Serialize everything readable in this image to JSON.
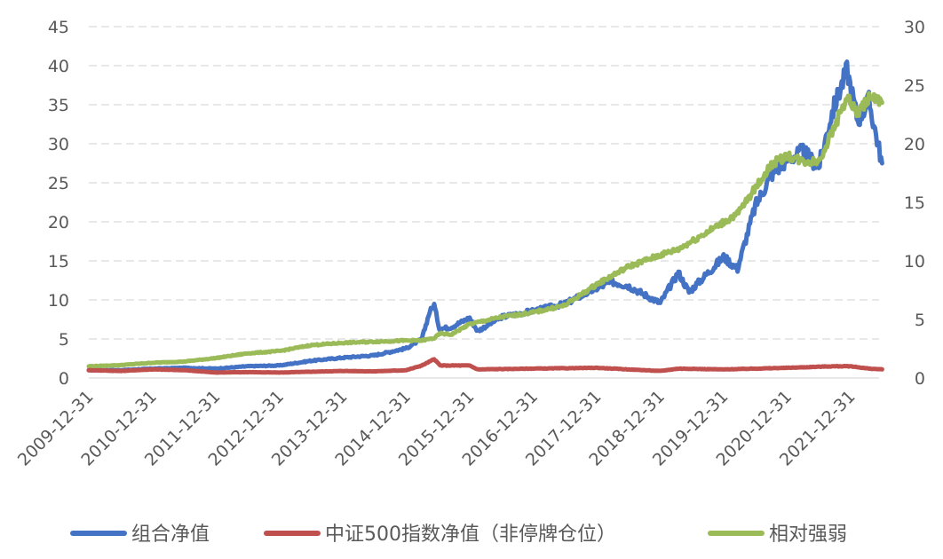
{
  "chart_data": {
    "type": "line",
    "title": "",
    "xlabel": "",
    "ylabel": "",
    "x_ticks": [
      "2009-12-31",
      "2010-12-31",
      "2011-12-31",
      "2012-12-31",
      "2013-12-31",
      "2014-12-31",
      "2015-12-31",
      "2016-12-31",
      "2017-12-31",
      "2018-12-31",
      "2019-12-31",
      "2020-12-31",
      "2021-12-31"
    ],
    "x_range": [
      "2009-12-31",
      "2022-06-30"
    ],
    "y_left": {
      "ticks": [
        0,
        5,
        10,
        15,
        20,
        25,
        30,
        35,
        40,
        45
      ],
      "ylim": [
        0,
        45
      ]
    },
    "y_right": {
      "ticks": [
        0,
        5,
        10,
        15,
        20,
        25,
        30
      ],
      "ylim": [
        0,
        30
      ]
    },
    "grid": "horizontal dashed",
    "legend_position": "bottom",
    "series": [
      {
        "name": "组合净值",
        "axis": "left",
        "color": "#4472C4",
        "points": [
          [
            "2009-12-31",
            1.0
          ],
          [
            "2010-06-30",
            1.0
          ],
          [
            "2010-12-31",
            1.2
          ],
          [
            "2011-06-30",
            1.3
          ],
          [
            "2011-12-31",
            1.2
          ],
          [
            "2012-06-30",
            1.5
          ],
          [
            "2012-12-31",
            1.6
          ],
          [
            "2013-06-30",
            2.2
          ],
          [
            "2013-12-31",
            2.6
          ],
          [
            "2014-06-30",
            2.9
          ],
          [
            "2014-12-31",
            3.8
          ],
          [
            "2015-03-31",
            5.0
          ],
          [
            "2015-05-15",
            8.5
          ],
          [
            "2015-06-10",
            9.4
          ],
          [
            "2015-07-10",
            6.3
          ],
          [
            "2015-09-15",
            6.5
          ],
          [
            "2015-12-31",
            7.7
          ],
          [
            "2016-02-15",
            6.0
          ],
          [
            "2016-06-30",
            7.8
          ],
          [
            "2016-12-31",
            8.6
          ],
          [
            "2017-06-30",
            9.5
          ],
          [
            "2017-12-31",
            11.5
          ],
          [
            "2018-03-31",
            12.3
          ],
          [
            "2018-06-30",
            11.8
          ],
          [
            "2018-12-31",
            9.6
          ],
          [
            "2019-04-15",
            13.5
          ],
          [
            "2019-06-15",
            11.0
          ],
          [
            "2019-12-31",
            15.5
          ],
          [
            "2020-03-20",
            14.0
          ],
          [
            "2020-06-30",
            22.0
          ],
          [
            "2020-09-30",
            26.0
          ],
          [
            "2020-12-31",
            28.0
          ],
          [
            "2021-03-31",
            29.0
          ],
          [
            "2021-06-30",
            27.0
          ],
          [
            "2021-09-15",
            34.0
          ],
          [
            "2021-12-10",
            39.5
          ],
          [
            "2022-02-10",
            33.0
          ],
          [
            "2022-04-15",
            35.5
          ],
          [
            "2022-06-30",
            27.5
          ]
        ]
      },
      {
        "name": "中证500指数净值（非停牌仓位）",
        "axis": "left",
        "color": "#C0504D",
        "points": [
          [
            "2009-12-31",
            1.0
          ],
          [
            "2010-06-30",
            0.9
          ],
          [
            "2010-12-31",
            1.1
          ],
          [
            "2011-06-30",
            1.0
          ],
          [
            "2011-12-31",
            0.7
          ],
          [
            "2012-06-30",
            0.75
          ],
          [
            "2012-12-31",
            0.7
          ],
          [
            "2013-06-30",
            0.8
          ],
          [
            "2013-12-31",
            0.9
          ],
          [
            "2014-06-30",
            0.85
          ],
          [
            "2014-12-31",
            1.0
          ],
          [
            "2015-03-31",
            1.6
          ],
          [
            "2015-06-10",
            2.4
          ],
          [
            "2015-07-15",
            1.6
          ],
          [
            "2015-12-31",
            1.6
          ],
          [
            "2016-02-15",
            1.1
          ],
          [
            "2016-12-31",
            1.2
          ],
          [
            "2017-12-31",
            1.3
          ],
          [
            "2018-12-31",
            0.9
          ],
          [
            "2019-04-15",
            1.2
          ],
          [
            "2019-12-31",
            1.1
          ],
          [
            "2020-12-31",
            1.3
          ],
          [
            "2021-09-15",
            1.5
          ],
          [
            "2021-12-31",
            1.5
          ],
          [
            "2022-04-15",
            1.2
          ],
          [
            "2022-06-30",
            1.1
          ]
        ]
      },
      {
        "name": "相对强弱",
        "axis": "right",
        "color": "#9BBB59",
        "points": [
          [
            "2009-12-31",
            1.0
          ],
          [
            "2010-06-30",
            1.1
          ],
          [
            "2010-12-31",
            1.3
          ],
          [
            "2011-06-30",
            1.4
          ],
          [
            "2011-12-31",
            1.7
          ],
          [
            "2012-06-30",
            2.1
          ],
          [
            "2012-12-31",
            2.3
          ],
          [
            "2013-06-30",
            2.8
          ],
          [
            "2013-12-31",
            3.0
          ],
          [
            "2014-06-30",
            3.1
          ],
          [
            "2014-12-31",
            3.2
          ],
          [
            "2015-03-31",
            3.2
          ],
          [
            "2015-06-10",
            3.4
          ],
          [
            "2015-07-15",
            3.8
          ],
          [
            "2015-09-15",
            3.7
          ],
          [
            "2015-12-31",
            4.6
          ],
          [
            "2016-06-30",
            5.2
          ],
          [
            "2016-12-31",
            5.6
          ],
          [
            "2017-06-30",
            6.2
          ],
          [
            "2017-12-31",
            8.0
          ],
          [
            "2018-06-30",
            9.5
          ],
          [
            "2018-12-31",
            10.5
          ],
          [
            "2019-04-15",
            11.0
          ],
          [
            "2019-12-31",
            13.3
          ],
          [
            "2020-03-20",
            14.0
          ],
          [
            "2020-09-30",
            18.2
          ],
          [
            "2020-12-31",
            19.0
          ],
          [
            "2021-03-31",
            18.5
          ],
          [
            "2021-06-30",
            18.5
          ],
          [
            "2021-09-15",
            21.0
          ],
          [
            "2021-12-10",
            24.0
          ],
          [
            "2022-02-10",
            22.5
          ],
          [
            "2022-04-15",
            24.0
          ],
          [
            "2022-06-30",
            23.5
          ]
        ]
      }
    ]
  }
}
